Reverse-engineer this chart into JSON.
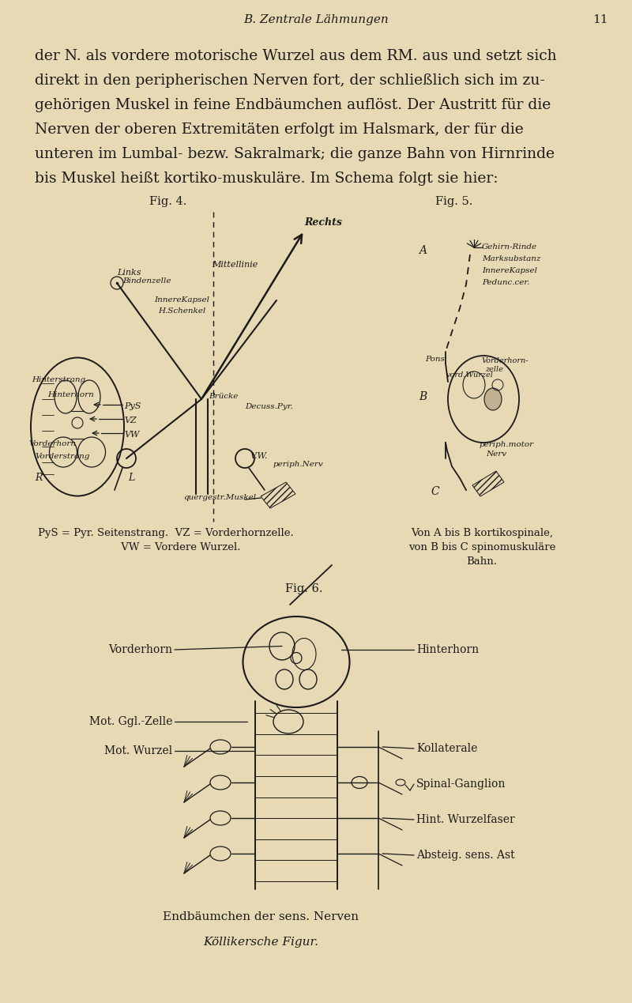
{
  "bg_color": "#e8d9b5",
  "text_color": "#1a1a1a",
  "page_header": "B. Zentrale Lähmungen",
  "page_number": "11",
  "caption4": "PyS = Pyr. Seitenstrang.  VZ = Vorderhornzelle.\n         VW = Vordere Wurzel.",
  "caption5": "Von A bis B kortikospinale,\nvon B bis C spinomuskuläre\nBahn.",
  "caption6_line1": "Endbäumchen der sens. Nerven",
  "caption6_line2": "Köllikersche Figur."
}
